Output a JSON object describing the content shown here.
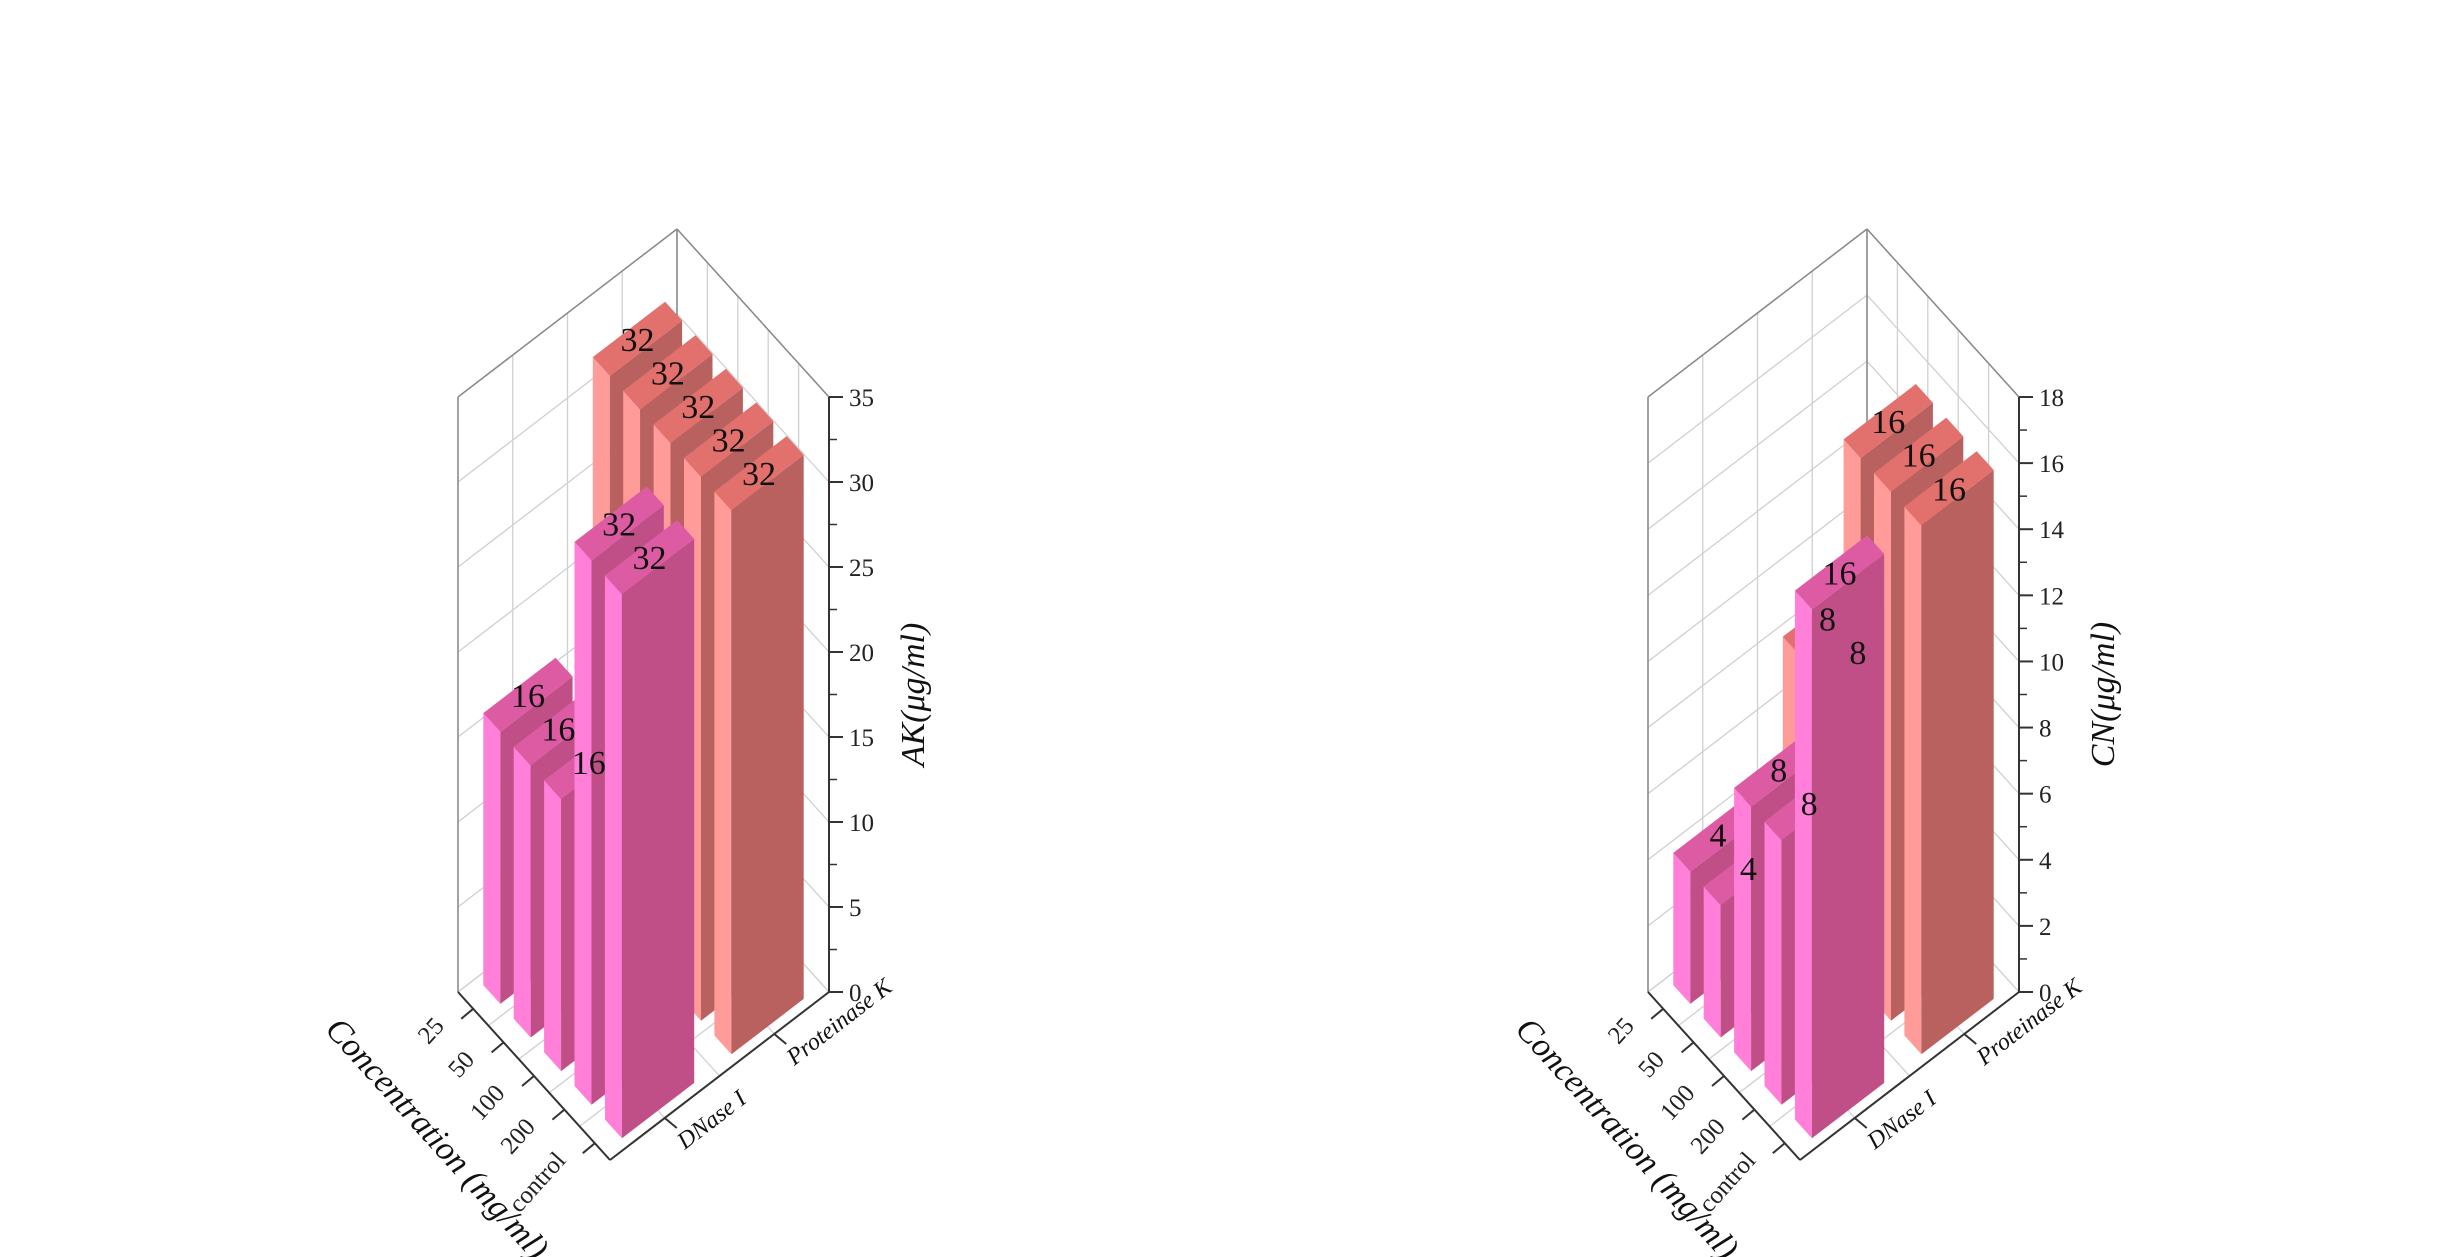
{
  "colors": {
    "dnase_front": "#ff7fd9",
    "dnase_top": "#dd5ba3",
    "dnase_side": "#bf4f86",
    "prot_front": "#ff9b98",
    "prot_top": "#e2706d",
    "prot_side": "#b8615f",
    "grid": "#d0d0d0",
    "axis": "#333333"
  },
  "chart_data": [
    {
      "type": "bar3d",
      "zlabel": "AK(μg/ml)",
      "xlabel": "Concentration (mg/ml)",
      "categories": [
        "control",
        "200",
        "100",
        "50",
        "25"
      ],
      "groups": [
        "DNase I",
        "Proteinase K"
      ],
      "zlim": [
        0,
        35
      ],
      "zticks": [
        "0",
        "5",
        "10",
        "15",
        "20",
        "25",
        "30",
        "35"
      ],
      "series": [
        {
          "name": "DNase I",
          "values": [
            32,
            32,
            16,
            16,
            16
          ],
          "labels": [
            "32",
            "32",
            "16",
            "16",
            "16"
          ]
        },
        {
          "name": "Proteinase K",
          "values": [
            32,
            32,
            32,
            32,
            32
          ],
          "labels": [
            "32",
            "32",
            "32",
            "32",
            "32"
          ]
        }
      ]
    },
    {
      "type": "bar3d",
      "zlabel": "CN(μg/ml)",
      "xlabel": "Concentration (mg/ml)",
      "categories": [
        "control",
        "200",
        "100",
        "50",
        "25"
      ],
      "groups": [
        "DNase I",
        "Proteinase K"
      ],
      "zlim": [
        0,
        18
      ],
      "zticks": [
        "0",
        "2",
        "4",
        "6",
        "8",
        "10",
        "12",
        "14",
        "16",
        "18"
      ],
      "series": [
        {
          "name": "DNase I",
          "values": [
            16,
            8,
            8,
            4,
            4
          ],
          "labels": [
            "16",
            "8",
            "8",
            "4",
            "4"
          ]
        },
        {
          "name": "Proteinase K",
          "values": [
            16,
            16,
            16,
            8,
            8
          ],
          "labels": [
            "16",
            "16",
            "16",
            "8",
            "8"
          ]
        }
      ]
    }
  ]
}
